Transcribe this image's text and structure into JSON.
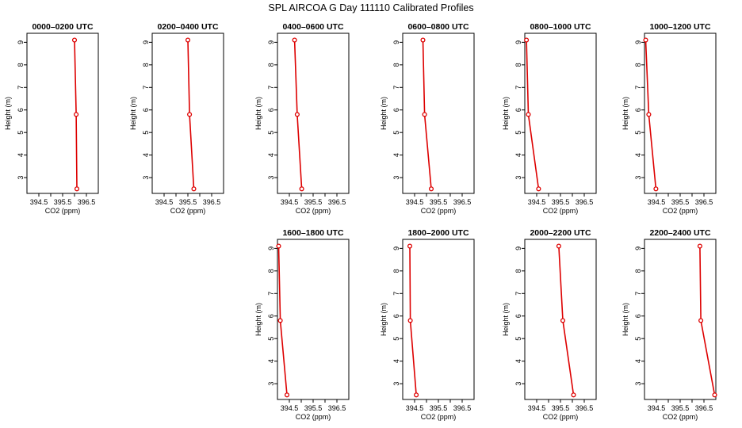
{
  "title": "SPL AIRCOA G  Day 111110  Calibrated Profiles",
  "colors": {
    "series": "#dd0000",
    "axes": "#000000",
    "background": "#ffffff"
  },
  "chart_data": [
    {
      "type": "line",
      "title": "0000–0200 UTC",
      "xlabel": "CO2 (ppm)",
      "ylabel": "Height (m)",
      "xlim": [
        394.0,
        397.0
      ],
      "ylim": [
        2.3,
        9.4
      ],
      "x_ticks": [
        "394.5",
        "395.5",
        "396.5"
      ],
      "y_ticks": [
        "3",
        "4",
        "5",
        "6",
        "7",
        "8",
        "9"
      ],
      "grid": false,
      "points": [
        {
          "x": 396.0,
          "y": 9.1
        },
        {
          "x": 396.07,
          "y": 5.8
        },
        {
          "x": 396.1,
          "y": 2.5
        }
      ]
    },
    {
      "type": "line",
      "title": "0200–0400 UTC",
      "xlabel": "CO2 (ppm)",
      "ylabel": "Height (m)",
      "xlim": [
        394.0,
        397.0
      ],
      "ylim": [
        2.3,
        9.4
      ],
      "x_ticks": [
        "394.5",
        "395.5",
        "396.5"
      ],
      "y_ticks": [
        "3",
        "4",
        "5",
        "6",
        "7",
        "8",
        "9"
      ],
      "grid": false,
      "points": [
        {
          "x": 395.5,
          "y": 9.1
        },
        {
          "x": 395.57,
          "y": 5.8
        },
        {
          "x": 395.75,
          "y": 2.5
        }
      ]
    },
    {
      "type": "line",
      "title": "0400–0600 UTC",
      "xlabel": "CO2 (ppm)",
      "ylabel": "Height (m)",
      "xlim": [
        394.0,
        397.0
      ],
      "ylim": [
        2.3,
        9.4
      ],
      "x_ticks": [
        "394.5",
        "395.5",
        "396.5"
      ],
      "y_ticks": [
        "3",
        "4",
        "5",
        "6",
        "7",
        "8",
        "9"
      ],
      "grid": false,
      "points": [
        {
          "x": 394.72,
          "y": 9.1
        },
        {
          "x": 394.83,
          "y": 5.8
        },
        {
          "x": 395.02,
          "y": 2.5
        }
      ]
    },
    {
      "type": "line",
      "title": "0600–0800 UTC",
      "xlabel": "CO2 (ppm)",
      "ylabel": "Height (m)",
      "xlim": [
        394.0,
        397.0
      ],
      "ylim": [
        2.3,
        9.4
      ],
      "x_ticks": [
        "394.5",
        "395.5",
        "396.5"
      ],
      "y_ticks": [
        "3",
        "4",
        "5",
        "6",
        "7",
        "8",
        "9"
      ],
      "grid": false,
      "points": [
        {
          "x": 394.85,
          "y": 9.1
        },
        {
          "x": 394.92,
          "y": 5.8
        },
        {
          "x": 395.2,
          "y": 2.5
        }
      ]
    },
    {
      "type": "line",
      "title": "0800–1000 UTC",
      "xlabel": "CO2 (ppm)",
      "ylabel": "Height (m)",
      "xlim": [
        394.0,
        397.0
      ],
      "ylim": [
        2.3,
        9.4
      ],
      "x_ticks": [
        "394.5",
        "395.5",
        "396.5"
      ],
      "y_ticks": [
        "3",
        "4",
        "5",
        "6",
        "7",
        "8",
        "9"
      ],
      "grid": false,
      "points": [
        {
          "x": 394.07,
          "y": 9.1
        },
        {
          "x": 394.15,
          "y": 5.8
        },
        {
          "x": 394.58,
          "y": 2.5
        }
      ]
    },
    {
      "type": "line",
      "title": "1000–1200 UTC",
      "xlabel": "CO2 (ppm)",
      "ylabel": "Height (m)",
      "xlim": [
        394.0,
        397.0
      ],
      "ylim": [
        2.3,
        9.4
      ],
      "x_ticks": [
        "394.5",
        "395.5",
        "396.5"
      ],
      "y_ticks": [
        "3",
        "4",
        "5",
        "6",
        "7",
        "8",
        "9"
      ],
      "grid": false,
      "points": [
        {
          "x": 394.05,
          "y": 9.1
        },
        {
          "x": 394.18,
          "y": 5.8
        },
        {
          "x": 394.48,
          "y": 2.5
        }
      ]
    },
    {
      "type": "line",
      "title": "1600–1800 UTC",
      "xlabel": "CO2 (ppm)",
      "ylabel": "Height (m)",
      "xlim": [
        394.0,
        397.0
      ],
      "ylim": [
        2.3,
        9.4
      ],
      "x_ticks": [
        "394.5",
        "395.5",
        "396.5"
      ],
      "y_ticks": [
        "3",
        "4",
        "5",
        "6",
        "7",
        "8",
        "9"
      ],
      "grid": false,
      "points": [
        {
          "x": 394.05,
          "y": 9.1
        },
        {
          "x": 394.12,
          "y": 5.8
        },
        {
          "x": 394.4,
          "y": 2.5
        }
      ]
    },
    {
      "type": "line",
      "title": "1800–2000 UTC",
      "xlabel": "CO2 (ppm)",
      "ylabel": "Height (m)",
      "xlim": [
        394.0,
        397.0
      ],
      "ylim": [
        2.3,
        9.4
      ],
      "x_ticks": [
        "394.5",
        "395.5",
        "396.5"
      ],
      "y_ticks": [
        "3",
        "4",
        "5",
        "6",
        "7",
        "8",
        "9"
      ],
      "grid": false,
      "points": [
        {
          "x": 394.3,
          "y": 9.1
        },
        {
          "x": 394.32,
          "y": 5.8
        },
        {
          "x": 394.57,
          "y": 2.5
        }
      ]
    },
    {
      "type": "line",
      "title": "2000–2200 UTC",
      "xlabel": "CO2 (ppm)",
      "ylabel": "Height (m)",
      "xlim": [
        394.0,
        397.0
      ],
      "ylim": [
        2.3,
        9.4
      ],
      "x_ticks": [
        "394.5",
        "395.5",
        "396.5"
      ],
      "y_ticks": [
        "3",
        "4",
        "5",
        "6",
        "7",
        "8",
        "9"
      ],
      "grid": false,
      "points": [
        {
          "x": 395.43,
          "y": 9.1
        },
        {
          "x": 395.6,
          "y": 5.8
        },
        {
          "x": 396.05,
          "y": 2.5
        }
      ]
    },
    {
      "type": "line",
      "title": "2200–2400 UTC",
      "xlabel": "CO2 (ppm)",
      "ylabel": "Height (m)",
      "xlim": [
        394.0,
        397.0
      ],
      "ylim": [
        2.3,
        9.4
      ],
      "x_ticks": [
        "394.5",
        "395.5",
        "396.5"
      ],
      "y_ticks": [
        "3",
        "4",
        "5",
        "6",
        "7",
        "8",
        "9"
      ],
      "grid": false,
      "points": [
        {
          "x": 396.33,
          "y": 9.1
        },
        {
          "x": 396.37,
          "y": 5.8
        },
        {
          "x": 396.95,
          "y": 2.5
        }
      ]
    }
  ]
}
